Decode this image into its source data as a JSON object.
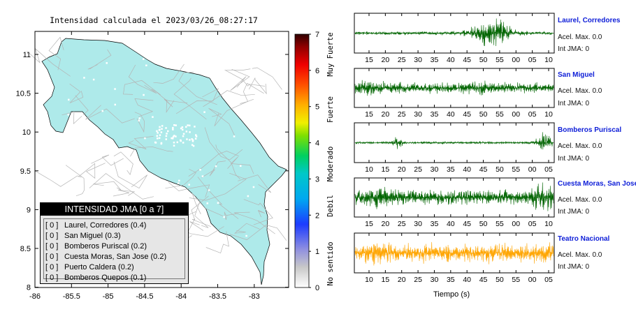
{
  "map": {
    "title": "Intensidad calculada el 2023/03/26_08:27:17",
    "x_ticks": [
      "-86",
      "-85.5",
      "-85",
      "-84.5",
      "-84",
      "-83.5",
      "-83"
    ],
    "y_ticks": [
      "11",
      "10.5",
      "10",
      "9.5",
      "9",
      "8.5",
      "8"
    ],
    "land_color": "#aeeaea",
    "road_color": "#b4b4b4"
  },
  "colorbar": {
    "ticks": [
      "7",
      "6",
      "5",
      "4",
      "3",
      "2",
      "1",
      "0"
    ],
    "labels": [
      "Muy Fuerte",
      "Fuerte",
      "Moderado",
      "Debil",
      "No sentido"
    ]
  },
  "legend": {
    "title": "INTENSIDAD JMA [0 a 7]",
    "items": [
      {
        "level": "[ 0 ]",
        "name": "Laurel, Corredores (0.4)"
      },
      {
        "level": "[ 0 ]",
        "name": "San Miguel (0.3)"
      },
      {
        "level": "[ 0 ]",
        "name": "Bomberos Puriscal (0.2)"
      },
      {
        "level": "[ 0 ]",
        "name": "Cuesta Moras, San Jose (0.2)"
      },
      {
        "level": "[ 0 ]",
        "name": "Puerto Caldera (0.2)"
      },
      {
        "level": "[ 0 ]",
        "name": "Bomberos Quepos (0.1)"
      }
    ]
  },
  "stations": [
    {
      "name": "Laurel, Corredores",
      "acel": "Acel. Max. 0.0",
      "jma": "Int JMA: 0",
      "color": "#006400",
      "ticks": [
        "15",
        "20",
        "25",
        "30",
        "35",
        "40",
        "45",
        "50",
        "55",
        "00",
        "05",
        "10"
      ]
    },
    {
      "name": "San Miguel",
      "acel": "Acel. Max. 0.0",
      "jma": "Int JMA: 0",
      "color": "#006400",
      "ticks": [
        "15",
        "20",
        "25",
        "30",
        "35",
        "40",
        "45",
        "50",
        "55",
        "00",
        "05",
        "10"
      ]
    },
    {
      "name": "Bomberos Puriscal",
      "acel": "Acel. Max. 0.0",
      "jma": "Int JMA: 0",
      "color": "#006400",
      "ticks": [
        "10",
        "15",
        "20",
        "25",
        "30",
        "35",
        "40",
        "45",
        "50",
        "55",
        "00",
        "05"
      ]
    },
    {
      "name": "Cuesta Moras, San Jose",
      "acel": "Acel. Max. 0.0",
      "jma": "Int JMA: 0",
      "color": "#006400",
      "ticks": [
        "15",
        "20",
        "25",
        "30",
        "35",
        "40",
        "45",
        "50",
        "55",
        "00",
        "05",
        "10"
      ]
    },
    {
      "name": "Teatro Nacional",
      "acel": "Acel. Max. 0.0",
      "jma": "Int JMA: 0",
      "color": "#ffa500",
      "ticks": [
        "10",
        "15",
        "20",
        "25",
        "30",
        "35",
        "40",
        "45",
        "50",
        "55",
        "00",
        "05"
      ]
    }
  ],
  "waveform_xlabel": "Tiempo (s)"
}
